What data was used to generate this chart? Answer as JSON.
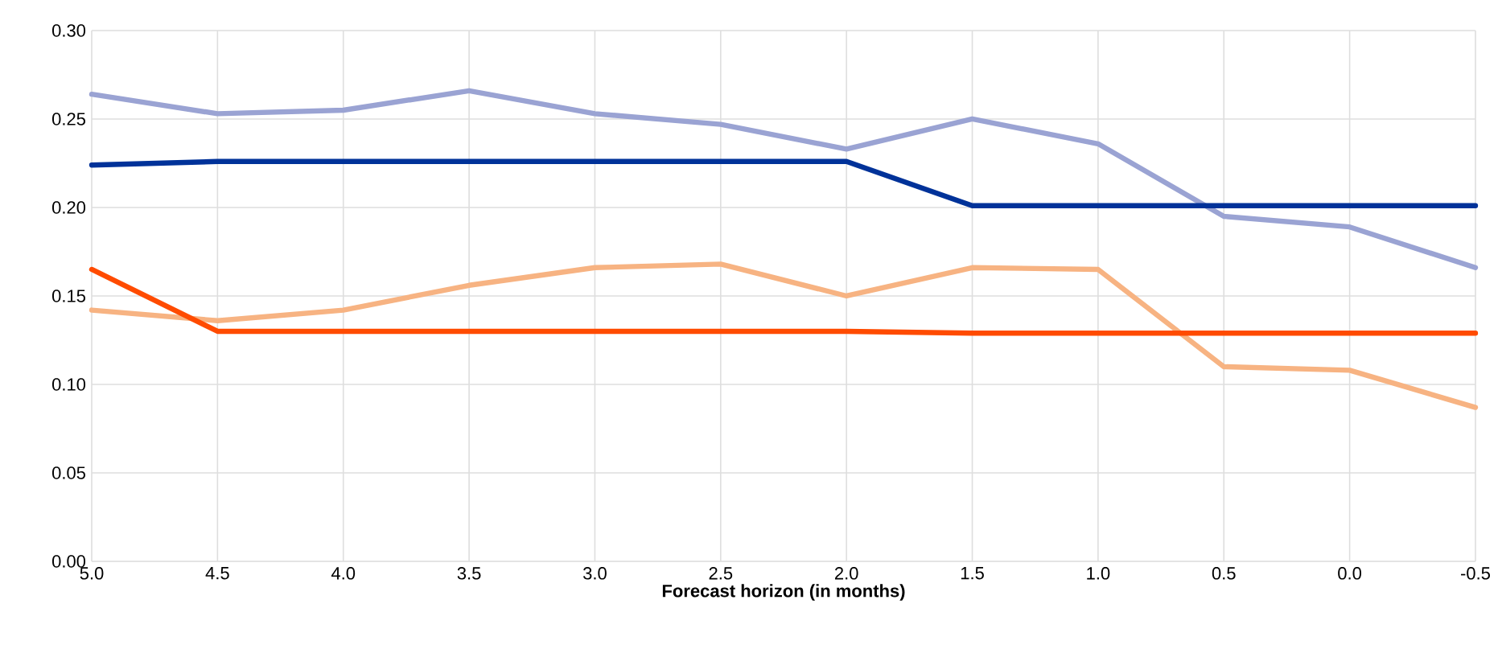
{
  "chart_data": {
    "type": "line",
    "x": [
      5.0,
      4.5,
      4.0,
      3.5,
      3.0,
      2.5,
      2.0,
      1.5,
      1.0,
      0.5,
      0.0,
      -0.5
    ],
    "series": [
      {
        "color": "#9aa3d3",
        "values": [
          0.264,
          0.253,
          0.255,
          0.266,
          0.253,
          0.247,
          0.233,
          0.25,
          0.236,
          0.195,
          0.189,
          0.166
        ]
      },
      {
        "color": "#003299",
        "values": [
          0.224,
          0.226,
          0.226,
          0.226,
          0.226,
          0.226,
          0.226,
          0.201,
          0.201,
          0.201,
          0.201,
          0.201
        ]
      },
      {
        "color": "#f7b382",
        "values": [
          0.142,
          0.136,
          0.142,
          0.156,
          0.166,
          0.168,
          0.15,
          0.166,
          0.165,
          0.11,
          0.108,
          0.087
        ]
      },
      {
        "color": "#ff4b00",
        "values": [
          0.165,
          0.13,
          0.13,
          0.13,
          0.13,
          0.13,
          0.13,
          0.129,
          0.129,
          0.129,
          0.129,
          0.129
        ]
      }
    ],
    "xlabel": "Forecast horizon (in months)",
    "xlim": [
      5.0,
      -0.5
    ],
    "xticks": [
      {
        "value": 5.0,
        "label": "5.0"
      },
      {
        "value": 4.5,
        "label": "4.5"
      },
      {
        "value": 4.0,
        "label": "4.0"
      },
      {
        "value": 3.5,
        "label": "3.5"
      },
      {
        "value": 3.0,
        "label": "3.0"
      },
      {
        "value": 2.5,
        "label": "2.5"
      },
      {
        "value": 2.0,
        "label": "2.0"
      },
      {
        "value": 1.5,
        "label": "1.5"
      },
      {
        "value": 1.0,
        "label": "1.0"
      },
      {
        "value": 0.5,
        "label": "0.5"
      },
      {
        "value": 0.0,
        "label": "0.0"
      },
      {
        "value": -0.5,
        "label": "-0.5"
      }
    ],
    "ylim": [
      0.0,
      0.3
    ],
    "yticks": [
      {
        "value": 0.0,
        "label": "0.00"
      },
      {
        "value": 0.05,
        "label": "0.05"
      },
      {
        "value": 0.1,
        "label": "0.10"
      },
      {
        "value": 0.15,
        "label": "0.15"
      },
      {
        "value": 0.2,
        "label": "0.20"
      },
      {
        "value": 0.25,
        "label": "0.25"
      },
      {
        "value": 0.3,
        "label": "0.30"
      }
    ],
    "grid": true,
    "marker": "none",
    "line_style": "solid"
  }
}
